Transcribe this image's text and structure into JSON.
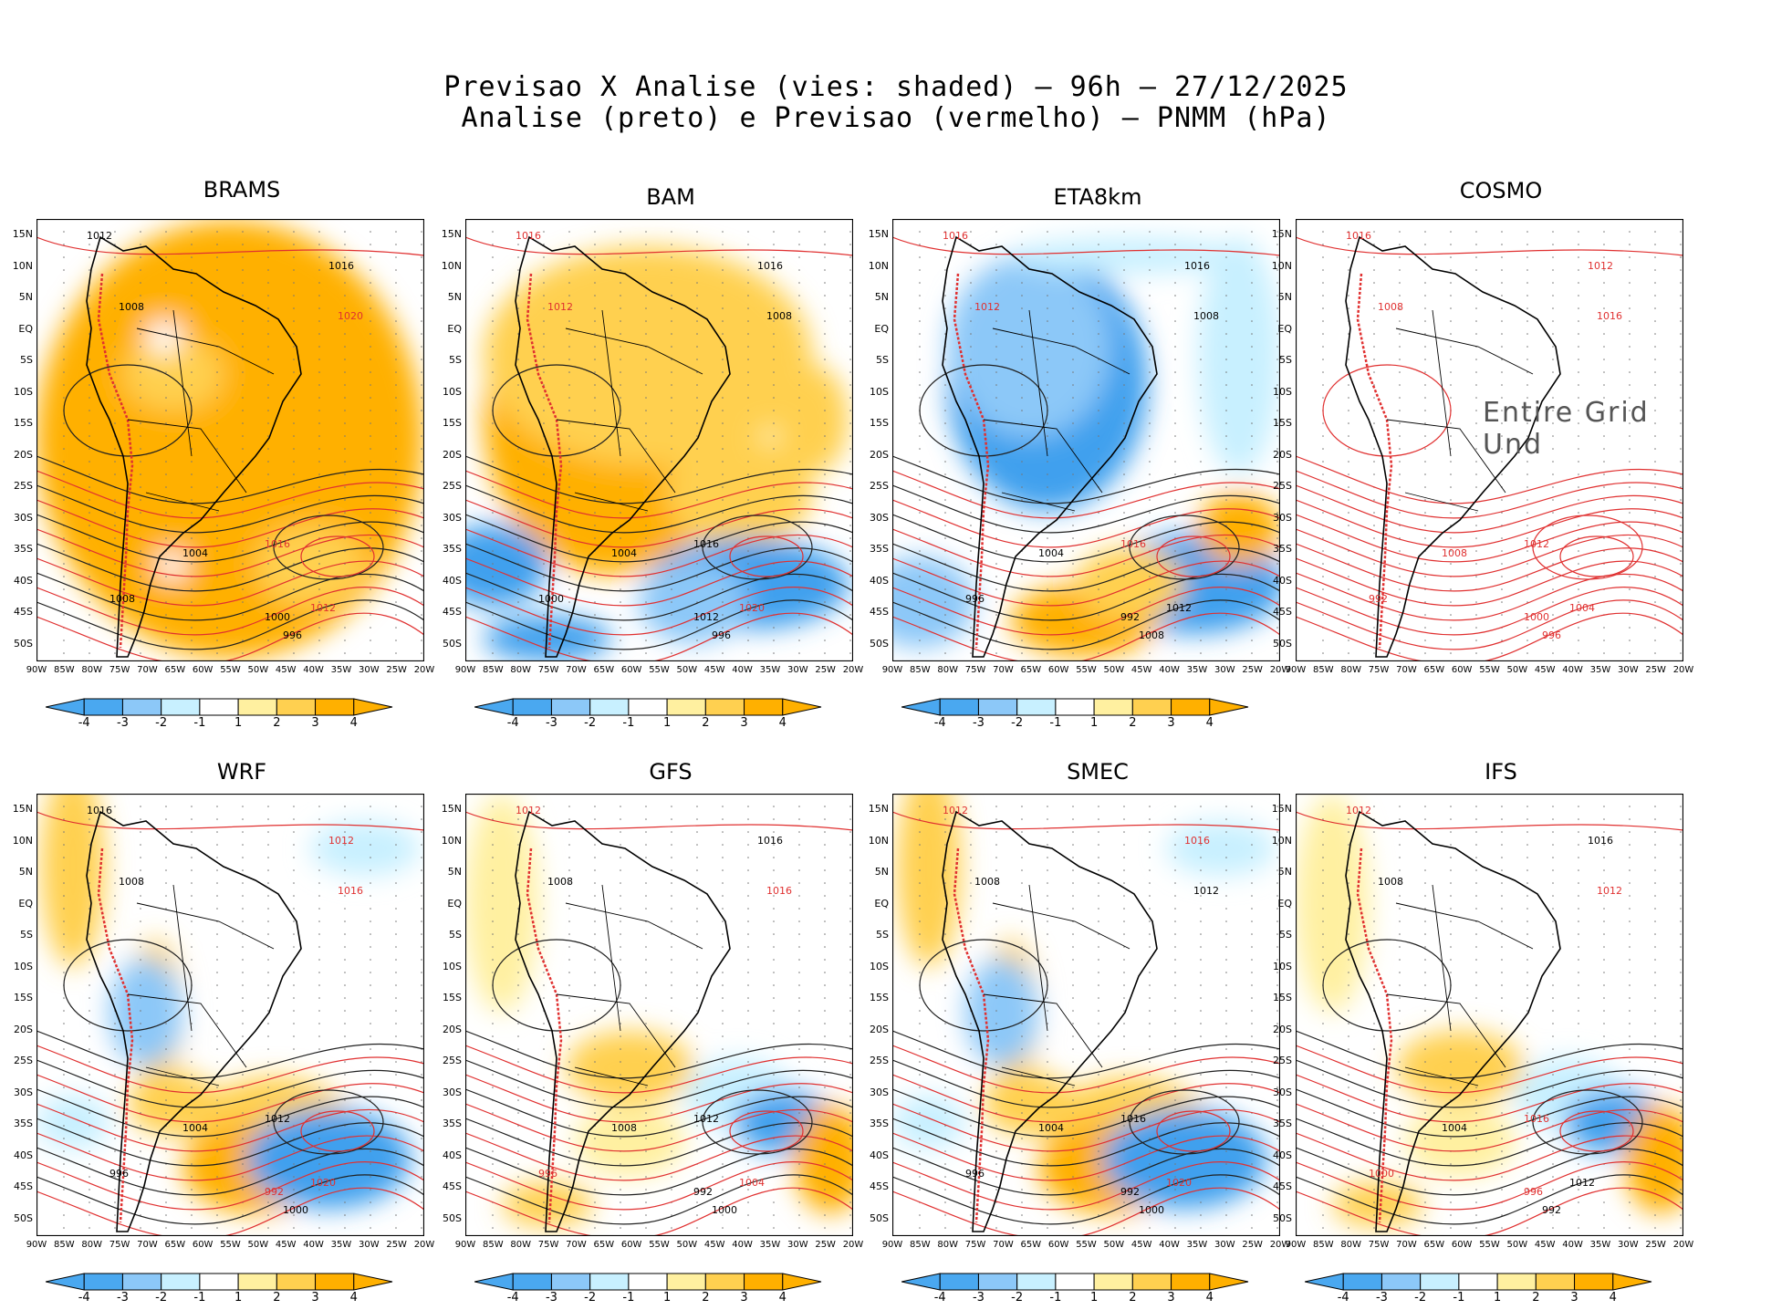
{
  "header": {
    "line1": "Previsao X Analise (vies: shaded) – 96h – 27/12/2025",
    "line2": "Analise (preto) e Previsao (vermelho) – PNMM (hPa)"
  },
  "lat_labels": [
    "15N",
    "10N",
    "5N",
    "EQ",
    "5S",
    "10S",
    "15S",
    "20S",
    "25S",
    "30S",
    "35S",
    "40S",
    "45S",
    "50S"
  ],
  "lon_labels": [
    "90W",
    "85W",
    "80W",
    "75W",
    "70W",
    "65W",
    "60W",
    "55W",
    "50W",
    "45W",
    "40W",
    "35W",
    "30W",
    "25W",
    "20W"
  ],
  "colorbar": {
    "labels": [
      "-4",
      "-3",
      "-2",
      "-1",
      "1",
      "2",
      "3",
      "4"
    ],
    "colors": [
      "#4aa8f0",
      "#8cc8f8",
      "#c8f0ff",
      "#ffffff",
      "#fff0a0",
      "#ffd050",
      "#ffb000"
    ]
  },
  "panels": [
    {
      "name": "BRAMS",
      "bias": "warm_all",
      "labels": [
        {
          "t": "1012",
          "c": "k"
        },
        {
          "t": "1016",
          "c": "k"
        },
        {
          "t": "1008",
          "c": "k"
        },
        {
          "t": "1020",
          "c": "r"
        },
        {
          "t": "1016",
          "c": "r"
        },
        {
          "t": "1012",
          "c": "r"
        },
        {
          "t": "1004",
          "c": "k"
        },
        {
          "t": "1000",
          "c": "k"
        },
        {
          "t": "996",
          "c": "k"
        },
        {
          "t": "1008",
          "c": "k"
        }
      ]
    },
    {
      "name": "BAM",
      "bias": "warm_south_cold",
      "labels": [
        {
          "t": "1016",
          "c": "r"
        },
        {
          "t": "1016",
          "c": "k"
        },
        {
          "t": "1012",
          "c": "r"
        },
        {
          "t": "1008",
          "c": "k"
        },
        {
          "t": "1016",
          "c": "k"
        },
        {
          "t": "1020",
          "c": "r"
        },
        {
          "t": "1004",
          "c": "k"
        },
        {
          "t": "1012",
          "c": "k"
        },
        {
          "t": "996",
          "c": "k"
        },
        {
          "t": "1000",
          "c": "k"
        }
      ]
    },
    {
      "name": "ETA8km",
      "bias": "cold_land",
      "labels": [
        {
          "t": "1016",
          "c": "r"
        },
        {
          "t": "1016",
          "c": "k"
        },
        {
          "t": "1012",
          "c": "r"
        },
        {
          "t": "1008",
          "c": "k"
        },
        {
          "t": "1016",
          "c": "r"
        },
        {
          "t": "1012",
          "c": "k"
        },
        {
          "t": "1004",
          "c": "k"
        },
        {
          "t": "992",
          "c": "k"
        },
        {
          "t": "1008",
          "c": "k"
        },
        {
          "t": "996",
          "c": "k"
        }
      ]
    },
    {
      "name": "COSMO",
      "bias": "none",
      "overlay": "Entire Grid Und",
      "labels": [
        {
          "t": "1016",
          "c": "r"
        },
        {
          "t": "1012",
          "c": "r"
        },
        {
          "t": "1008",
          "c": "r"
        },
        {
          "t": "1016",
          "c": "r"
        },
        {
          "t": "1012",
          "c": "r"
        },
        {
          "t": "1004",
          "c": "r"
        },
        {
          "t": "1008",
          "c": "r"
        },
        {
          "t": "1000",
          "c": "r"
        },
        {
          "t": "996",
          "c": "r"
        },
        {
          "t": "992",
          "c": "r"
        }
      ]
    },
    {
      "name": "WRF",
      "bias": "mixed",
      "labels": [
        {
          "t": "1016",
          "c": "k"
        },
        {
          "t": "1012",
          "c": "r"
        },
        {
          "t": "1008",
          "c": "k"
        },
        {
          "t": "1016",
          "c": "r"
        },
        {
          "t": "1012",
          "c": "k"
        },
        {
          "t": "1020",
          "c": "r"
        },
        {
          "t": "1004",
          "c": "k"
        },
        {
          "t": "992",
          "c": "r"
        },
        {
          "t": "1000",
          "c": "k"
        },
        {
          "t": "996",
          "c": "k"
        }
      ]
    },
    {
      "name": "GFS",
      "bias": "mixed_light",
      "labels": [
        {
          "t": "1012",
          "c": "r"
        },
        {
          "t": "1016",
          "c": "k"
        },
        {
          "t": "1008",
          "c": "k"
        },
        {
          "t": "1016",
          "c": "r"
        },
        {
          "t": "1012",
          "c": "k"
        },
        {
          "t": "1004",
          "c": "r"
        },
        {
          "t": "1008",
          "c": "k"
        },
        {
          "t": "992",
          "c": "k"
        },
        {
          "t": "1000",
          "c": "k"
        },
        {
          "t": "996",
          "c": "r"
        }
      ]
    },
    {
      "name": "SMEC",
      "bias": "mixed",
      "labels": [
        {
          "t": "1012",
          "c": "r"
        },
        {
          "t": "1016",
          "c": "r"
        },
        {
          "t": "1008",
          "c": "k"
        },
        {
          "t": "1012",
          "c": "k"
        },
        {
          "t": "1016",
          "c": "k"
        },
        {
          "t": "1020",
          "c": "r"
        },
        {
          "t": "1004",
          "c": "k"
        },
        {
          "t": "992",
          "c": "k"
        },
        {
          "t": "1000",
          "c": "k"
        },
        {
          "t": "996",
          "c": "k"
        }
      ]
    },
    {
      "name": "IFS",
      "bias": "mixed_light",
      "labels": [
        {
          "t": "1012",
          "c": "r"
        },
        {
          "t": "1016",
          "c": "k"
        },
        {
          "t": "1008",
          "c": "k"
        },
        {
          "t": "1012",
          "c": "r"
        },
        {
          "t": "1016",
          "c": "r"
        },
        {
          "t": "1012",
          "c": "k"
        },
        {
          "t": "1004",
          "c": "k"
        },
        {
          "t": "996",
          "c": "r"
        },
        {
          "t": "992",
          "c": "k"
        },
        {
          "t": "1000",
          "c": "r"
        }
      ]
    }
  ]
}
